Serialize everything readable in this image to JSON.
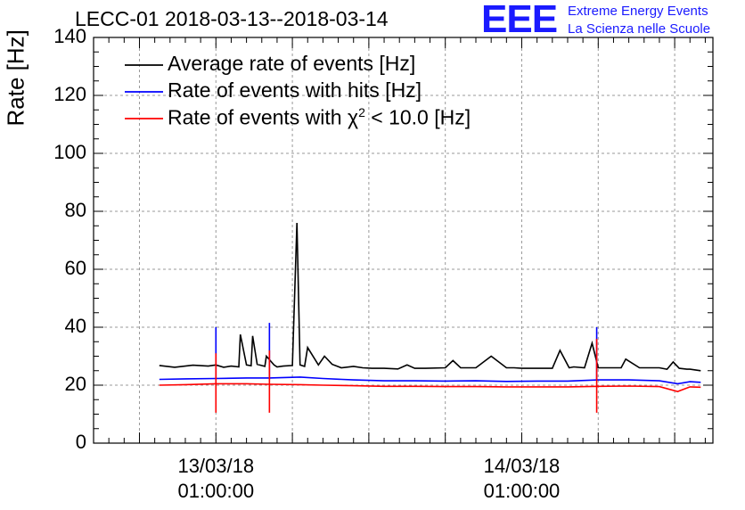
{
  "title": "LECC-01 2018-03-13--2018-03-14",
  "logo": {
    "mark": "EEE",
    "line1": "Extreme Energy Events",
    "line2": "La Scienza nelle Scuole",
    "color": "#1a1aff"
  },
  "chart_data": {
    "type": "line",
    "title": "LECC-01 2018-03-13--2018-03-14",
    "xlabel": "",
    "ylabel": "Rate [Hz]",
    "ylim": [
      0,
      140
    ],
    "yticks": [
      0,
      20,
      40,
      60,
      80,
      100,
      120,
      140
    ],
    "xlim_hours": [
      -8,
      32.5
    ],
    "xticks": [
      {
        "line1": "13/03/18",
        "line2": "01:00:00",
        "hour": 0
      },
      {
        "line1": "14/03/18",
        "line2": "01:00:00",
        "hour": 20
      }
    ],
    "grid": true,
    "legend_position": "top-left",
    "series": [
      {
        "name": "Average rate of events [Hz]",
        "color": "#000000",
        "x_hours": [
          -3.7,
          -2.7,
          -1.5,
          -0.5,
          0.0,
          0.5,
          1.0,
          1.5,
          1.6,
          2.0,
          2.3,
          2.4,
          2.7,
          3.2,
          3.3,
          3.8,
          4.0,
          4.4,
          5.0,
          5.3,
          5.5,
          5.8,
          6.0,
          6.7,
          7.1,
          7.6,
          8.2,
          9.0,
          9.6,
          10.2,
          11.0,
          11.9,
          12.5,
          13.0,
          13.7,
          15.0,
          15.5,
          16.0,
          17.0,
          18.0,
          19.0,
          19.5,
          20.0,
          21.6,
          22.0,
          22.5,
          23.1,
          23.4,
          24.1,
          24.6,
          25.0,
          25.3,
          26.5,
          26.8,
          27.7,
          29.0,
          29.5,
          29.9,
          30.3,
          30.8,
          31.0,
          31.7
        ],
        "y": [
          26.8,
          26.2,
          26.9,
          26.6,
          27.0,
          26.2,
          26.6,
          26.3,
          37.5,
          27.0,
          26.7,
          37.0,
          27.2,
          26.5,
          30.0,
          27.0,
          26.3,
          26.6,
          26.8,
          76.0,
          27.0,
          26.5,
          33.0,
          27.0,
          30.0,
          27.2,
          26.0,
          26.5,
          26.0,
          25.8,
          25.8,
          25.6,
          27.0,
          25.8,
          25.8,
          26.0,
          28.5,
          26.0,
          26.0,
          30.0,
          26.0,
          26.0,
          25.8,
          25.8,
          25.8,
          32.0,
          26.0,
          26.3,
          26.0,
          34.5,
          26.0,
          26.0,
          26.0,
          29.0,
          26.0,
          26.0,
          25.5,
          28.0,
          25.8,
          25.5,
          25.5,
          25.0
        ]
      },
      {
        "name": "Rate of events with hits [Hz]",
        "color": "#0000ff",
        "x_hours": [
          -3.7,
          -2.0,
          0.0,
          2.0,
          3.5,
          5.5,
          7.0,
          9.0,
          11.0,
          13.0,
          15.0,
          17.0,
          19.0,
          21.0,
          23.0,
          25.0,
          27.0,
          29.0,
          30.2,
          31.0,
          31.7
        ],
        "y": [
          22.0,
          22.2,
          22.3,
          22.5,
          22.5,
          22.8,
          22.3,
          21.8,
          21.5,
          21.5,
          21.4,
          21.5,
          21.3,
          21.4,
          21.4,
          21.8,
          21.8,
          21.5,
          20.5,
          21.2,
          21.0
        ],
        "spikes": [
          {
            "hour": 0.0,
            "top": 40.0
          },
          {
            "hour": 3.5,
            "top": 41.5
          },
          {
            "hour": 24.9,
            "top": 40.0
          }
        ]
      },
      {
        "name": "Rate of events with χ2 < 10.0 [Hz]",
        "color": "#ff0000",
        "x_hours": [
          -3.7,
          -2.0,
          0.0,
          2.0,
          3.5,
          5.5,
          7.0,
          9.0,
          11.0,
          13.0,
          15.0,
          17.0,
          19.0,
          21.0,
          23.0,
          25.0,
          27.0,
          29.0,
          30.2,
          31.0,
          31.7
        ],
        "y": [
          20.0,
          20.2,
          20.5,
          20.5,
          20.3,
          20.2,
          20.0,
          19.8,
          19.6,
          19.6,
          19.5,
          19.5,
          19.4,
          19.4,
          19.4,
          19.6,
          19.7,
          19.5,
          17.8,
          19.4,
          19.3
        ],
        "spikes": [
          {
            "hour": 0.0,
            "top": 31.0,
            "bottom": 10.5
          },
          {
            "hour": 3.5,
            "top": 32.0,
            "bottom": 10.5
          },
          {
            "hour": 24.9,
            "top": 36.0,
            "bottom": 10.5
          }
        ]
      }
    ]
  },
  "legend": [
    {
      "text": "Average rate of events [Hz]",
      "color": "#000000"
    },
    {
      "text": "Rate of events with hits [Hz]",
      "color": "#0000ff"
    },
    {
      "text_before": "Rate of events with χ",
      "superscript": "2",
      "text_after": " < 10.0 [Hz]",
      "color": "#ff0000"
    }
  ]
}
